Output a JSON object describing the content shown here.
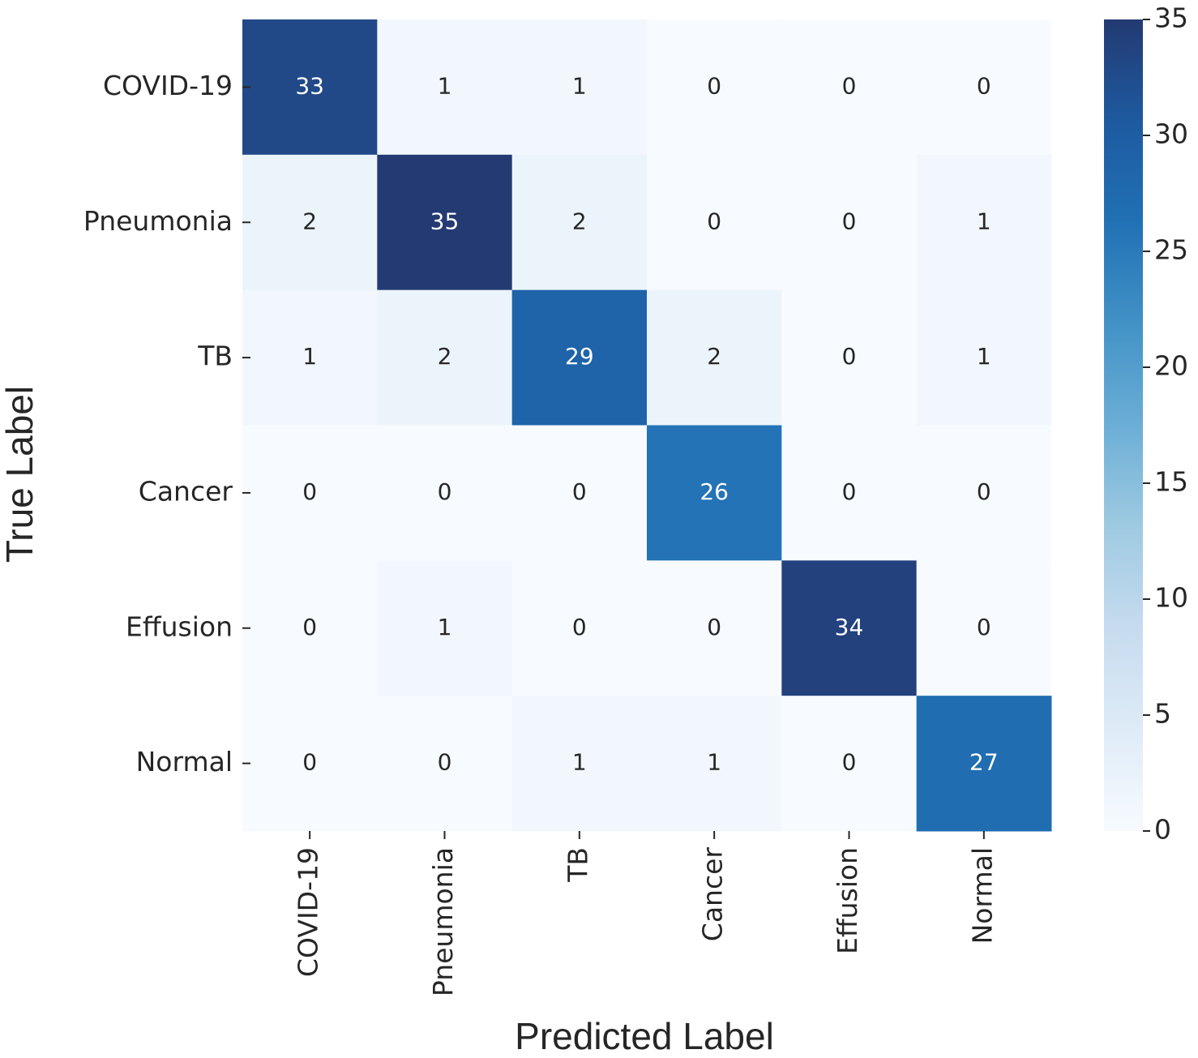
{
  "chart_data": {
    "type": "heatmap",
    "x_label": "Predicted Label",
    "y_label": "True Label",
    "x_categories": [
      "COVID-19",
      "Pneumonia",
      "TB",
      "Cancer",
      "Effusion",
      "Normal"
    ],
    "y_categories": [
      "COVID-19",
      "Pneumonia",
      "TB",
      "Cancer",
      "Effusion",
      "Normal"
    ],
    "values": [
      [
        33,
        1,
        1,
        0,
        0,
        0
      ],
      [
        2,
        35,
        2,
        0,
        0,
        1
      ],
      [
        1,
        2,
        29,
        2,
        0,
        1
      ],
      [
        0,
        0,
        0,
        26,
        0,
        0
      ],
      [
        0,
        1,
        0,
        0,
        34,
        0
      ],
      [
        0,
        0,
        1,
        1,
        0,
        27
      ]
    ],
    "colors": [
      "#f7fbff",
      "#deebf7",
      "#c6dbef",
      "#9ecae1",
      "#6baed6",
      "#4292c6",
      "#2171b5",
      "#1e5aa0",
      "#233a72"
    ],
    "clim": [
      0,
      35
    ],
    "cticks": [
      0,
      5,
      10,
      15,
      20,
      25,
      30,
      35
    ]
  }
}
